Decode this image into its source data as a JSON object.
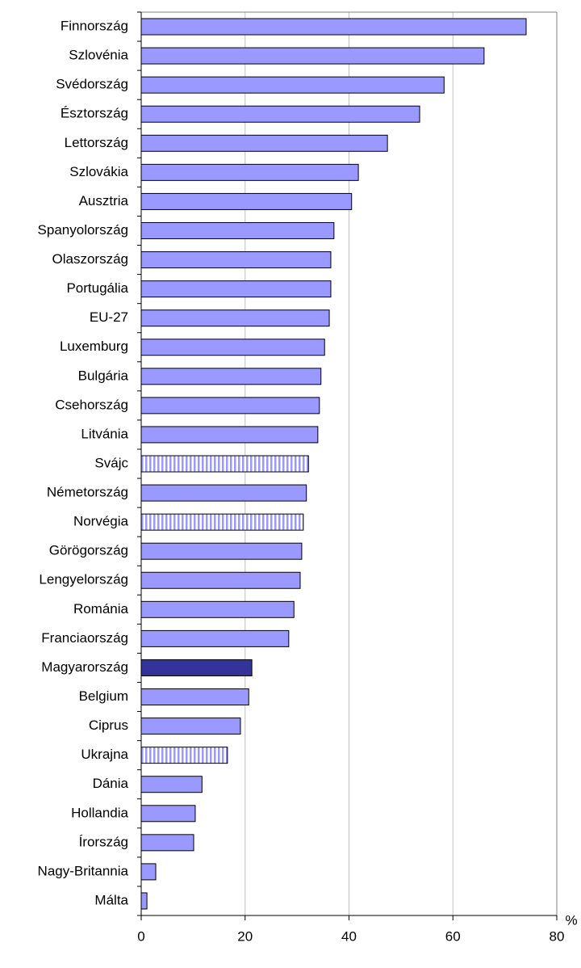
{
  "chart_data": {
    "type": "barh",
    "x_label": "%",
    "categories": [
      "Finnország",
      "Szlovénia",
      "Svédország",
      "Észtország",
      "Lettország",
      "Szlovákia",
      "Ausztria",
      "Spanyolország",
      "Olaszország",
      "Portugália",
      "EU-27",
      "Luxemburg",
      "Bulgária",
      "Csehország",
      "Litvánia",
      "Svájc",
      "Németország",
      "Norvégia",
      "Görögország",
      "Lengyelország",
      "Románia",
      "Franciaország",
      "Magyarország",
      "Belgium",
      "Ciprus",
      "Ukrajna",
      "Dánia",
      "Hollandia",
      "Írország",
      "Nagy-Britannia",
      "Málta"
    ],
    "values": [
      74.1,
      66.0,
      58.3,
      53.6,
      47.4,
      41.8,
      40.5,
      37.1,
      36.5,
      36.5,
      36.2,
      35.3,
      34.6,
      34.3,
      34.0,
      32.2,
      31.8,
      31.2,
      30.9,
      30.6,
      29.4,
      28.4,
      21.3,
      20.7,
      19.1,
      16.6,
      11.7,
      10.4,
      10.1,
      2.8,
      1.1
    ],
    "colors": [
      "#9999ff",
      "#9999ff",
      "#9999ff",
      "#9999ff",
      "#9999ff",
      "#9999ff",
      "#9999ff",
      "#9999ff",
      "#9999ff",
      "#9999ff",
      "#9999ff",
      "#9999ff",
      "#9999ff",
      "#9999ff",
      "#9999ff",
      "#9999ff",
      "#9999ff",
      "#9999ff",
      "#9999ff",
      "#9999ff",
      "#9999ff",
      "#9999ff",
      "#333399",
      "#9999ff",
      "#9999ff",
      "#9999ff",
      "#9999ff",
      "#9999ff",
      "#9999ff",
      "#9999ff",
      "#9999ff"
    ],
    "patterns": [
      "solid",
      "solid",
      "solid",
      "solid",
      "solid",
      "solid",
      "solid",
      "solid",
      "solid",
      "solid",
      "solid",
      "solid",
      "solid",
      "solid",
      "solid",
      "striped",
      "solid",
      "striped",
      "solid",
      "solid",
      "solid",
      "solid",
      "solid",
      "solid",
      "solid",
      "striped",
      "solid",
      "solid",
      "solid",
      "solid",
      "solid"
    ],
    "xlim": [
      0,
      80
    ],
    "xticks": [
      0,
      20,
      40,
      60,
      80
    ],
    "grid": true
  }
}
